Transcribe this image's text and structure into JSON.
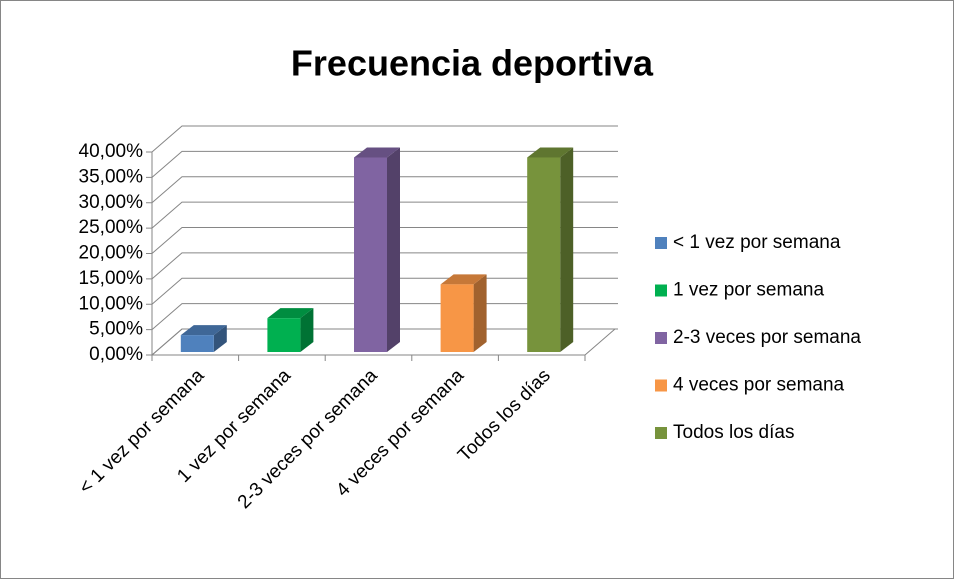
{
  "chart_data": {
    "type": "bar3d",
    "title": "Frecuencia deportiva",
    "categories": [
      "< 1 vez por semana",
      "1 vez por semana",
      "2-3 veces por semana",
      "4 veces por semana",
      "Todos los días"
    ],
    "values": [
      3.33,
      6.67,
      38.33,
      13.33,
      38.33
    ],
    "colors": [
      "#4f81bd",
      "#00b050",
      "#8064a2",
      "#f79646",
      "#77933c"
    ],
    "ylim": [
      0,
      40
    ],
    "yticks": [
      {
        "value": 0,
        "label": "0,00%"
      },
      {
        "value": 5,
        "label": "5,00%"
      },
      {
        "value": 10,
        "label": "10,00%"
      },
      {
        "value": 15,
        "label": "15,00%"
      },
      {
        "value": 20,
        "label": "20,00%"
      },
      {
        "value": 25,
        "label": "25,00%"
      },
      {
        "value": 30,
        "label": "30,00%"
      },
      {
        "value": 35,
        "label": "35,00%"
      },
      {
        "value": 40,
        "label": "40,00%"
      }
    ],
    "grid": true,
    "legend": "right"
  }
}
